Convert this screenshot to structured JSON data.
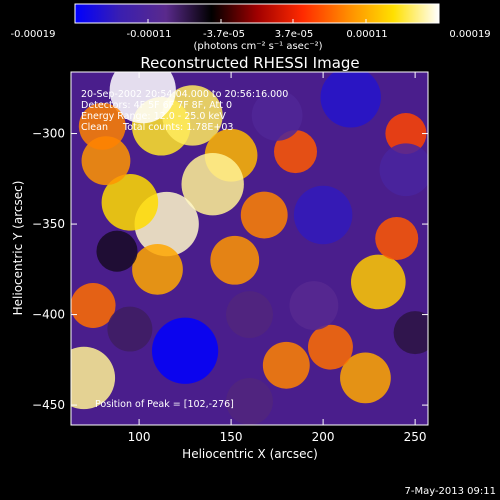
{
  "colorbar": {
    "ticks": [
      "-0.00019",
      "-0.00011",
      "-3.7e-05",
      "3.7e-05",
      "0.00011",
      "0.00019"
    ],
    "units": "(photons cm⁻² s⁻¹ asec⁻²)",
    "stops": [
      "#0000ff",
      "#3a1fb0",
      "#5a2a8c",
      "#000000",
      "#a00000",
      "#ff2a00",
      "#ff8c00",
      "#ffe000",
      "#ffffff"
    ]
  },
  "plot": {
    "title": "Reconstructed RHESSI Image",
    "xlabel": "Heliocentric X (arcsec)",
    "ylabel": "Heliocentric Y (arcsec)"
  },
  "annotations": {
    "line1": "20-Sep-2002 20:54:04.000 to 20:56:16.000",
    "line2": "Detectors: 4F 5F 6F 7F 8F, Att 0",
    "line3": "Energy Range: 12.0 - 25.0 keV",
    "line4": "Clean     Total counts: 1.78E+03",
    "peak": "Position of Peak = [102,-276]"
  },
  "footer": {
    "date": "7-May-2013 09:11"
  },
  "chart_data": {
    "type": "heatmap",
    "title": "Reconstructed RHESSI Image",
    "xlabel": "Heliocentric X (arcsec)",
    "ylabel": "Heliocentric Y (arcsec)",
    "xlim": [
      63,
      257
    ],
    "ylim": [
      -461,
      -266
    ],
    "x_ticks": [
      100,
      150,
      200,
      250
    ],
    "y_ticks": [
      -300,
      -350,
      -400,
      -450
    ],
    "colorbar_range": [
      -0.00019,
      0.00019
    ],
    "peak_position": [
      102,
      -276
    ],
    "blobs": [
      {
        "x": 112,
        "y": -296,
        "v": 0.00015
      },
      {
        "x": 129,
        "y": -290,
        "v": 0.00016
      },
      {
        "x": 102,
        "y": -276,
        "v": 0.00019
      },
      {
        "x": 150,
        "y": -312,
        "v": 0.00012
      },
      {
        "x": 140,
        "y": -328,
        "v": 0.00017
      },
      {
        "x": 115,
        "y": -350,
        "v": 0.00018
      },
      {
        "x": 95,
        "y": -338,
        "v": 0.00014
      },
      {
        "x": 82,
        "y": -315,
        "v": 0.0001
      },
      {
        "x": 80,
        "y": -296,
        "v": 9e-05
      },
      {
        "x": 110,
        "y": -375,
        "v": 0.00011
      },
      {
        "x": 152,
        "y": -370,
        "v": 0.0001
      },
      {
        "x": 168,
        "y": -345,
        "v": 9e-05
      },
      {
        "x": 70,
        "y": -435,
        "v": 0.00017
      },
      {
        "x": 75,
        "y": -395,
        "v": 8e-05
      },
      {
        "x": 230,
        "y": -382,
        "v": 0.00013
      },
      {
        "x": 223,
        "y": -435,
        "v": 0.00011
      },
      {
        "x": 180,
        "y": -428,
        "v": 9e-05
      },
      {
        "x": 204,
        "y": -418,
        "v": 8e-05
      },
      {
        "x": 185,
        "y": -310,
        "v": 7e-05
      },
      {
        "x": 245,
        "y": -300,
        "v": 6e-05
      },
      {
        "x": 240,
        "y": -358,
        "v": 7e-05
      },
      {
        "x": 125,
        "y": -420,
        "v": -0.00019
      },
      {
        "x": 200,
        "y": -345,
        "v": -0.00015
      },
      {
        "x": 215,
        "y": -280,
        "v": -0.00016
      },
      {
        "x": 175,
        "y": -290,
        "v": -0.00011
      },
      {
        "x": 245,
        "y": -320,
        "v": -0.00012
      },
      {
        "x": 195,
        "y": -395,
        "v": -0.0001
      },
      {
        "x": 95,
        "y": -408,
        "v": -8e-05
      },
      {
        "x": 160,
        "y": -448,
        "v": -9e-05
      },
      {
        "x": 250,
        "y": -410,
        "v": -7e-05
      },
      {
        "x": 88,
        "y": -365,
        "v": -6e-05
      },
      {
        "x": 160,
        "y": -400,
        "v": -9e-05
      }
    ]
  }
}
